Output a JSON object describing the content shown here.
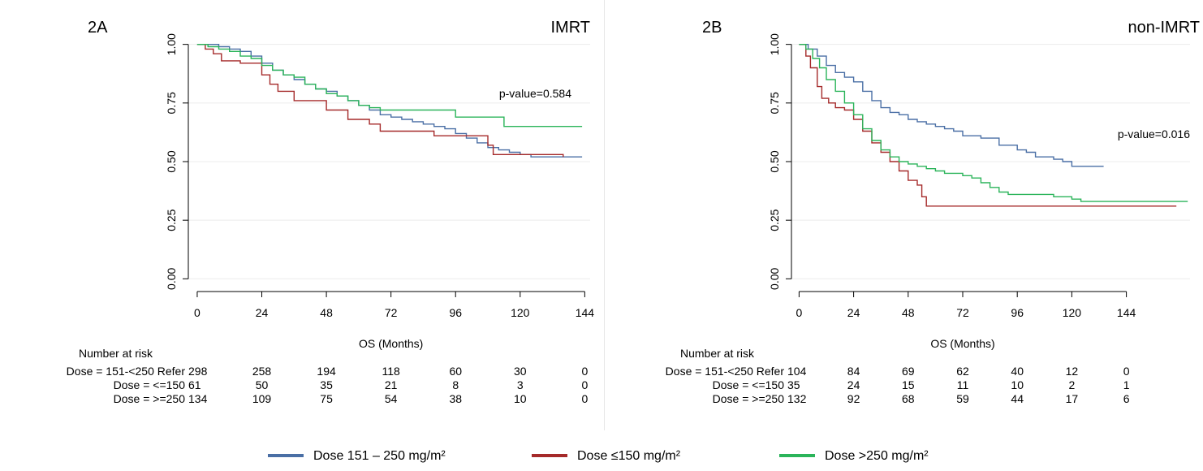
{
  "legend": [
    {
      "label": "Dose 151 – 250 mg/m²",
      "color": "#4a6fa5"
    },
    {
      "label": "Dose ≤150 mg/m²",
      "color": "#a52a2a"
    },
    {
      "label": "Dose >250 mg/m²",
      "color": "#2bb45a"
    }
  ],
  "chart_data": [
    {
      "type": "line",
      "panel_label": "2A",
      "title": "IMRT",
      "annotation": "p-value=0.584",
      "xlabel": "OS (Months)",
      "ylabel": "",
      "xlim": [
        -3,
        146
      ],
      "ylim": [
        0,
        1
      ],
      "xticks": [
        "0",
        "24",
        "48",
        "72",
        "96",
        "120",
        "144"
      ],
      "yticks": [
        "0.00",
        "0.25",
        "0.50",
        "0.75",
        "1.00"
      ],
      "grid": "horizontal",
      "step": true,
      "series": [
        {
          "color": "#4a6fa5",
          "x": [
            0,
            4,
            8,
            12,
            16,
            20,
            24,
            28,
            32,
            36,
            40,
            44,
            48,
            52,
            56,
            60,
            64,
            68,
            72,
            76,
            80,
            84,
            88,
            92,
            96,
            100,
            104,
            108,
            112,
            116,
            120,
            124,
            128,
            132,
            136,
            140,
            143
          ],
          "y": [
            1.0,
            1.0,
            0.99,
            0.98,
            0.97,
            0.95,
            0.92,
            0.89,
            0.87,
            0.85,
            0.83,
            0.81,
            0.8,
            0.78,
            0.76,
            0.74,
            0.72,
            0.7,
            0.69,
            0.68,
            0.67,
            0.66,
            0.65,
            0.64,
            0.62,
            0.6,
            0.58,
            0.56,
            0.55,
            0.54,
            0.53,
            0.52,
            0.52,
            0.52,
            0.52,
            0.52,
            0.52
          ]
        },
        {
          "color": "#a52a2a",
          "x": [
            0,
            3,
            6,
            9,
            12,
            16,
            20,
            24,
            27,
            30,
            33,
            36,
            40,
            45,
            48,
            52,
            56,
            60,
            64,
            68,
            72,
            80,
            88,
            96,
            104,
            108,
            110,
            114,
            120,
            125,
            130,
            136
          ],
          "y": [
            1.0,
            0.98,
            0.96,
            0.93,
            0.93,
            0.92,
            0.92,
            0.87,
            0.83,
            0.8,
            0.8,
            0.76,
            0.76,
            0.76,
            0.72,
            0.72,
            0.68,
            0.68,
            0.66,
            0.63,
            0.63,
            0.63,
            0.61,
            0.61,
            0.61,
            0.57,
            0.53,
            0.53,
            0.53,
            0.53,
            0.53,
            0.52
          ]
        },
        {
          "color": "#2bb45a",
          "x": [
            0,
            4,
            8,
            12,
            16,
            20,
            24,
            28,
            32,
            36,
            40,
            44,
            48,
            52,
            56,
            60,
            64,
            68,
            72,
            80,
            88,
            96,
            100,
            104,
            108,
            112,
            114,
            120,
            130,
            140,
            143
          ],
          "y": [
            1.0,
            0.99,
            0.98,
            0.97,
            0.95,
            0.94,
            0.91,
            0.89,
            0.87,
            0.86,
            0.83,
            0.81,
            0.79,
            0.78,
            0.76,
            0.74,
            0.73,
            0.72,
            0.72,
            0.72,
            0.72,
            0.69,
            0.69,
            0.69,
            0.69,
            0.69,
            0.65,
            0.65,
            0.65,
            0.65,
            0.65
          ]
        }
      ],
      "risk_table": {
        "heading": "Number at risk",
        "rows": [
          {
            "label": "Dose = 151-<250 Refer",
            "values": [
              "298",
              "258",
              "194",
              "118",
              "60",
              "30",
              "0"
            ]
          },
          {
            "label": "Dose = <=150",
            "values": [
              "61",
              "50",
              "35",
              "21",
              "8",
              "3",
              "0"
            ]
          },
          {
            "label": "Dose = >=250",
            "values": [
              "134",
              "109",
              "75",
              "54",
              "38",
              "10",
              "0"
            ]
          }
        ]
      }
    },
    {
      "type": "line",
      "panel_label": "2B",
      "title": "non-IMRT",
      "annotation": "p-value=0.016",
      "xlabel": "OS (Months)",
      "ylabel": "",
      "xlim": [
        -3,
        172
      ],
      "ylim": [
        0,
        1
      ],
      "xticks": [
        "0",
        "24",
        "48",
        "72",
        "96",
        "120",
        "144"
      ],
      "yticks": [
        "0.00",
        "0.25",
        "0.50",
        "0.75",
        "1.00"
      ],
      "grid": "horizontal",
      "step": true,
      "series": [
        {
          "color": "#4a6fa5",
          "x": [
            0,
            4,
            8,
            12,
            16,
            20,
            24,
            28,
            32,
            36,
            40,
            44,
            48,
            52,
            56,
            60,
            64,
            68,
            72,
            80,
            88,
            96,
            100,
            104,
            112,
            116,
            120,
            124,
            130,
            134
          ],
          "y": [
            1.0,
            0.98,
            0.95,
            0.91,
            0.88,
            0.86,
            0.84,
            0.8,
            0.76,
            0.73,
            0.71,
            0.7,
            0.68,
            0.67,
            0.66,
            0.65,
            0.64,
            0.63,
            0.61,
            0.6,
            0.57,
            0.55,
            0.54,
            0.52,
            0.51,
            0.5,
            0.48,
            0.48,
            0.48,
            0.48
          ]
        },
        {
          "color": "#a52a2a",
          "x": [
            0,
            3,
            5,
            8,
            10,
            13,
            16,
            20,
            24,
            28,
            32,
            36,
            40,
            44,
            48,
            52,
            54,
            56,
            60,
            80,
            100,
            120,
            140,
            160,
            166
          ],
          "y": [
            1.0,
            0.95,
            0.9,
            0.82,
            0.77,
            0.75,
            0.73,
            0.72,
            0.68,
            0.63,
            0.58,
            0.54,
            0.5,
            0.46,
            0.42,
            0.4,
            0.35,
            0.31,
            0.31,
            0.31,
            0.31,
            0.31,
            0.31,
            0.31,
            0.31
          ]
        },
        {
          "color": "#2bb45a",
          "x": [
            0,
            3,
            6,
            9,
            12,
            16,
            20,
            24,
            28,
            32,
            36,
            40,
            44,
            48,
            52,
            56,
            60,
            64,
            68,
            72,
            76,
            80,
            84,
            88,
            92,
            96,
            104,
            112,
            120,
            124,
            130,
            140,
            150,
            160,
            171
          ],
          "y": [
            1.0,
            0.98,
            0.94,
            0.9,
            0.85,
            0.8,
            0.75,
            0.7,
            0.64,
            0.59,
            0.55,
            0.52,
            0.5,
            0.49,
            0.48,
            0.47,
            0.46,
            0.45,
            0.45,
            0.44,
            0.43,
            0.41,
            0.39,
            0.37,
            0.36,
            0.36,
            0.36,
            0.35,
            0.34,
            0.33,
            0.33,
            0.33,
            0.33,
            0.33,
            0.33
          ]
        }
      ],
      "risk_table": {
        "heading": "Number at risk",
        "rows": [
          {
            "label": "Dose = 151-<250 Refer",
            "values": [
              "104",
              "84",
              "69",
              "62",
              "40",
              "12",
              "0"
            ]
          },
          {
            "label": "Dose = <=150",
            "values": [
              "35",
              "24",
              "15",
              "11",
              "10",
              "2",
              "1"
            ]
          },
          {
            "label": "Dose = >=250",
            "values": [
              "132",
              "92",
              "68",
              "59",
              "44",
              "17",
              "6"
            ]
          }
        ]
      }
    }
  ]
}
